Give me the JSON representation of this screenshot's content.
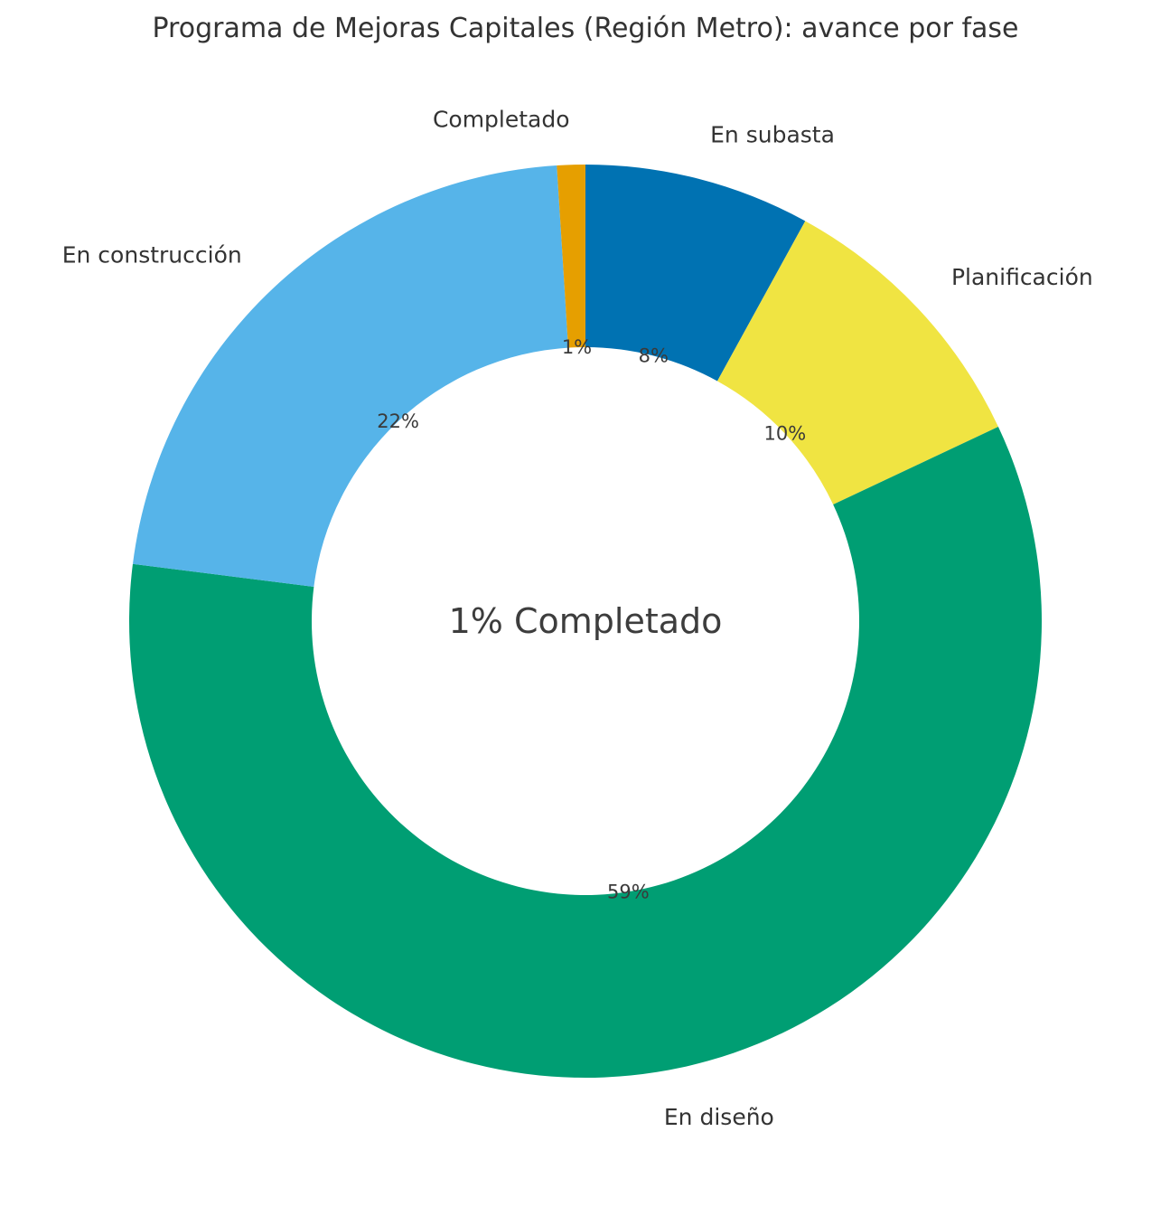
{
  "chart_data": {
    "type": "pie",
    "variant": "donut",
    "title": "Programa de Mejoras Capitales (Región Metro): avance por fase",
    "center_label": "1% Completado",
    "unit": "%",
    "direction": "clockwise",
    "start_angle_deg": 0,
    "donut_hole_ratio": 0.6,
    "label_distance": 1.1,
    "pct_distance": 0.6,
    "legend": "none",
    "background_color": "#ffffff",
    "text_color": "#333333",
    "segments": [
      {
        "label": "En subasta",
        "value": 8,
        "pct_label": "8%",
        "color": "#0072B2"
      },
      {
        "label": "Planificación",
        "value": 10,
        "pct_label": "10%",
        "color": "#F0E442"
      },
      {
        "label": "En diseño",
        "value": 59,
        "pct_label": "59%",
        "color": "#009E73"
      },
      {
        "label": "En construcción",
        "value": 22,
        "pct_label": "22%",
        "color": "#56B4E9"
      },
      {
        "label": "Completado",
        "value": 1,
        "pct_label": "1%",
        "color": "#E69F00"
      }
    ]
  }
}
